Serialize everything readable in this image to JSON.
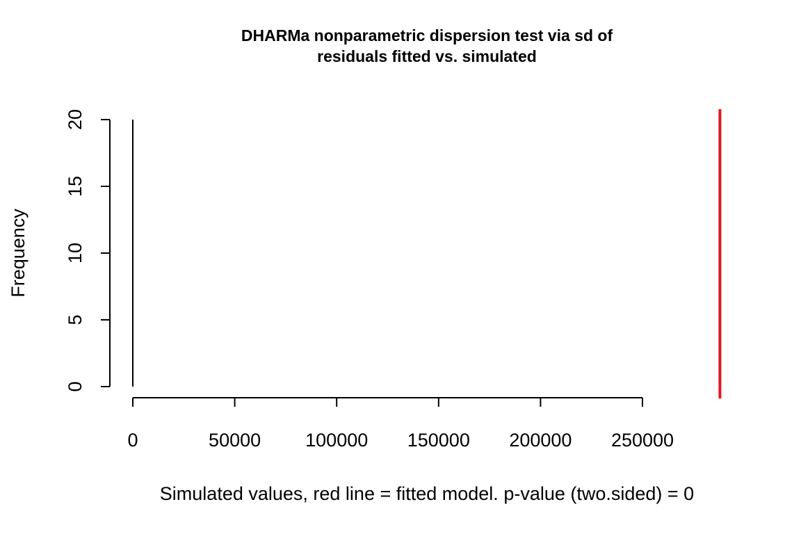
{
  "chart_data": {
    "type": "bar",
    "title_line1": "DHARMa nonparametric dispersion test via sd of",
    "title_line2": "residuals fitted vs. simulated",
    "xlabel": "Simulated values, red line = fitted model. p-value (two.sided) = 0",
    "ylabel": "Frequency",
    "xlim": [
      0,
      250000
    ],
    "ylim": [
      0,
      20
    ],
    "x_ticks": [
      "0",
      "50000",
      "100000",
      "150000",
      "200000",
      "250000"
    ],
    "x_tick_values": [
      0,
      50000,
      100000,
      150000,
      200000,
      250000
    ],
    "y_ticks": [
      "0",
      "5",
      "10",
      "15",
      "20"
    ],
    "y_tick_values": [
      0,
      5,
      10,
      15,
      20
    ],
    "bars": [
      {
        "x": 0,
        "frequency": 20
      }
    ],
    "fitted_value": 288000,
    "bar_color": "#000000",
    "fitted_line_color": "#e8141e",
    "grid": false,
    "legend": "none"
  }
}
